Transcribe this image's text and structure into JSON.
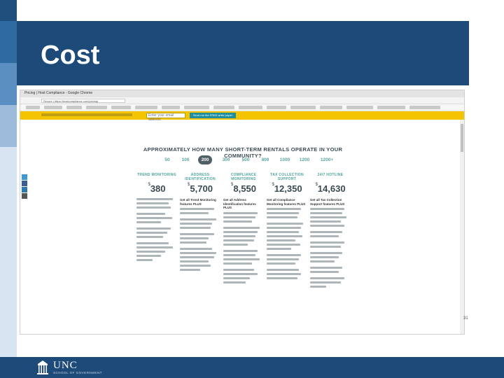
{
  "slide": {
    "title": "Cost",
    "page_number": "31"
  },
  "browser": {
    "tab_title": "Pricing | Host Compliance - Google Chrome",
    "address": "Secure | https://hostcompliance.com/pricing/",
    "banner_input_placeholder": "Enter your email address",
    "banner_button": "Send me the FREE white paper"
  },
  "pricing": {
    "headline": "APPROXIMATELY HOW MANY SHORT-TERM RENTALS OPERATE IN YOUR COMMUNITY?",
    "counts": [
      "50",
      "100",
      "200",
      "300",
      "500",
      "800",
      "1000",
      "1200",
      "1200+"
    ],
    "selected_count": "200",
    "columns": [
      {
        "heading": "TREND MONITORING",
        "currency": "$",
        "amount": "380",
        "plus": ""
      },
      {
        "heading": "ADDRESS IDENTIFICATION",
        "currency": "$",
        "amount": "5,700",
        "plus": "Get all Trend Monitoring features PLUS"
      },
      {
        "heading": "COMPLIANCE MONITORING",
        "currency": "$",
        "amount": "8,550",
        "plus": "Get all Address Identification features PLUS"
      },
      {
        "heading": "TAX COLLECTION SUPPORT",
        "currency": "$",
        "amount": "12,350",
        "plus": "Get all Compliance Monitoring features PLUS"
      },
      {
        "heading": "24/7 HOTLINE",
        "currency": "$",
        "amount": "14,630",
        "plus": "Get all Tax Collection Support features PLUS"
      }
    ]
  },
  "footer": {
    "logo_text": "UNC",
    "subtitle": "SCHOOL OF GOVERNMENT"
  },
  "colors": {
    "brand_blue": "#1d4a78",
    "teal": "#4ca39c",
    "banner_yellow": "#f5c400"
  }
}
